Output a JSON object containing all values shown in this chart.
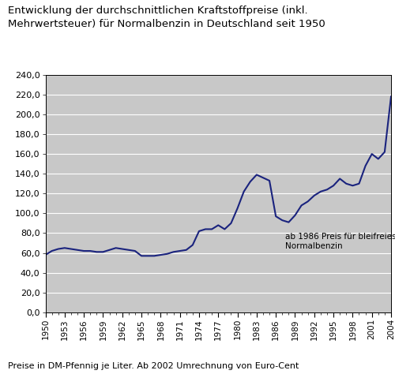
{
  "title_line1": "Entwicklung der durchschnittlichen Kraftstoffpreise (inkl.",
  "title_line2": "Mehrwertsteuer) für Normalbenzin in Deutschland seit 1950",
  "footnote": "Preise in DM-Pfennig je Liter. Ab 2002 Umrechnung von Euro-Cent",
  "annotation": "ab 1986 Preis für bleifreies\nNormalbenzin",
  "line_color": "#1a237e",
  "plot_bg_color": "#c8c8c8",
  "fig_bg": "#ffffff",
  "ylim": [
    0,
    240
  ],
  "ytick_step": 20,
  "years": [
    1950,
    1951,
    1952,
    1953,
    1954,
    1955,
    1956,
    1957,
    1958,
    1959,
    1960,
    1961,
    1962,
    1963,
    1964,
    1965,
    1966,
    1967,
    1968,
    1969,
    1970,
    1971,
    1972,
    1973,
    1974,
    1975,
    1976,
    1977,
    1978,
    1979,
    1980,
    1981,
    1982,
    1983,
    1984,
    1985,
    1986,
    1987,
    1988,
    1989,
    1990,
    1991,
    1992,
    1993,
    1994,
    1995,
    1996,
    1997,
    1998,
    1999,
    2000,
    2001,
    2002,
    2003,
    2004
  ],
  "values": [
    58,
    62,
    64,
    65,
    64,
    63,
    62,
    62,
    61,
    61,
    63,
    65,
    64,
    63,
    62,
    57,
    57,
    57,
    58,
    59,
    61,
    62,
    63,
    68,
    82,
    84,
    84,
    88,
    84,
    90,
    105,
    122,
    132,
    139,
    136,
    133,
    97,
    93,
    91,
    98,
    108,
    112,
    118,
    122,
    124,
    128,
    135,
    130,
    128,
    130,
    148,
    160,
    155,
    162,
    218
  ]
}
